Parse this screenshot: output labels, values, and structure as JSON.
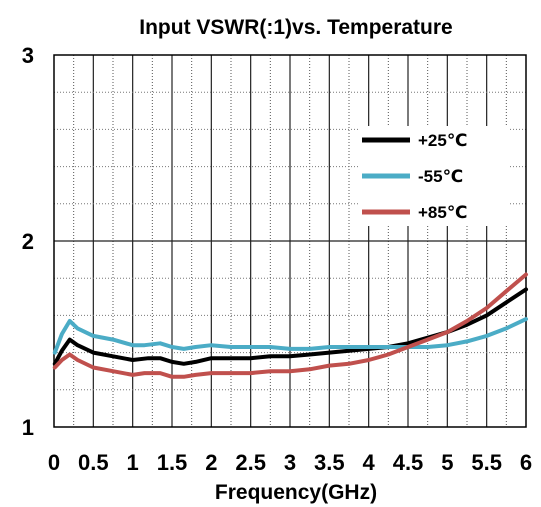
{
  "chart_data": {
    "type": "line",
    "title": "Input VSWR(:1)vs. Temperature",
    "xlabel": "Frequency(GHz)",
    "ylabel": "",
    "xlim": [
      0,
      6
    ],
    "ylim": [
      1,
      3
    ],
    "x_ticks": [
      "0",
      "0.5",
      "1",
      "1.5",
      "2",
      "2.5",
      "3",
      "3.5",
      "4",
      "4.5",
      "5",
      "5.5",
      "6"
    ],
    "y_ticks": [
      "1",
      "2",
      "3"
    ],
    "grid": true,
    "legend_position": "top-right",
    "series": [
      {
        "name": "+25℃",
        "color": "#000000",
        "x": [
          0.01,
          0.1,
          0.2,
          0.3,
          0.5,
          0.75,
          1.0,
          1.2,
          1.35,
          1.5,
          1.65,
          1.8,
          2.0,
          2.25,
          2.5,
          2.75,
          3.0,
          3.25,
          3.5,
          3.75,
          4.0,
          4.25,
          4.5,
          4.75,
          5.0,
          5.25,
          5.5,
          5.75,
          6.0
        ],
        "y": [
          1.34,
          1.41,
          1.47,
          1.44,
          1.4,
          1.38,
          1.36,
          1.37,
          1.37,
          1.35,
          1.34,
          1.35,
          1.37,
          1.37,
          1.37,
          1.38,
          1.38,
          1.39,
          1.4,
          1.41,
          1.42,
          1.43,
          1.45,
          1.48,
          1.51,
          1.55,
          1.6,
          1.67,
          1.74
        ]
      },
      {
        "name": "-55℃",
        "color": "#4BACC6",
        "x": [
          0.01,
          0.1,
          0.2,
          0.3,
          0.5,
          0.75,
          1.0,
          1.15,
          1.35,
          1.5,
          1.65,
          1.8,
          2.0,
          2.25,
          2.5,
          2.75,
          3.0,
          3.25,
          3.5,
          3.75,
          4.0,
          4.25,
          4.5,
          4.75,
          5.0,
          5.25,
          5.5,
          5.75,
          6.0
        ],
        "y": [
          1.4,
          1.5,
          1.57,
          1.53,
          1.49,
          1.47,
          1.44,
          1.44,
          1.45,
          1.43,
          1.42,
          1.43,
          1.44,
          1.43,
          1.43,
          1.43,
          1.42,
          1.42,
          1.43,
          1.43,
          1.43,
          1.43,
          1.43,
          1.43,
          1.44,
          1.46,
          1.49,
          1.53,
          1.58
        ]
      },
      {
        "name": "+85℃",
        "color": "#C0504D",
        "x": [
          0.01,
          0.1,
          0.2,
          0.3,
          0.5,
          0.75,
          1.0,
          1.15,
          1.35,
          1.5,
          1.65,
          1.8,
          2.0,
          2.25,
          2.5,
          2.75,
          3.0,
          3.25,
          3.5,
          3.75,
          4.0,
          4.25,
          4.5,
          4.75,
          5.0,
          5.25,
          5.5,
          5.75,
          6.0
        ],
        "y": [
          1.32,
          1.36,
          1.39,
          1.36,
          1.32,
          1.3,
          1.28,
          1.29,
          1.29,
          1.27,
          1.27,
          1.28,
          1.29,
          1.29,
          1.29,
          1.3,
          1.3,
          1.31,
          1.33,
          1.34,
          1.36,
          1.39,
          1.43,
          1.47,
          1.51,
          1.57,
          1.64,
          1.73,
          1.82
        ]
      }
    ]
  }
}
